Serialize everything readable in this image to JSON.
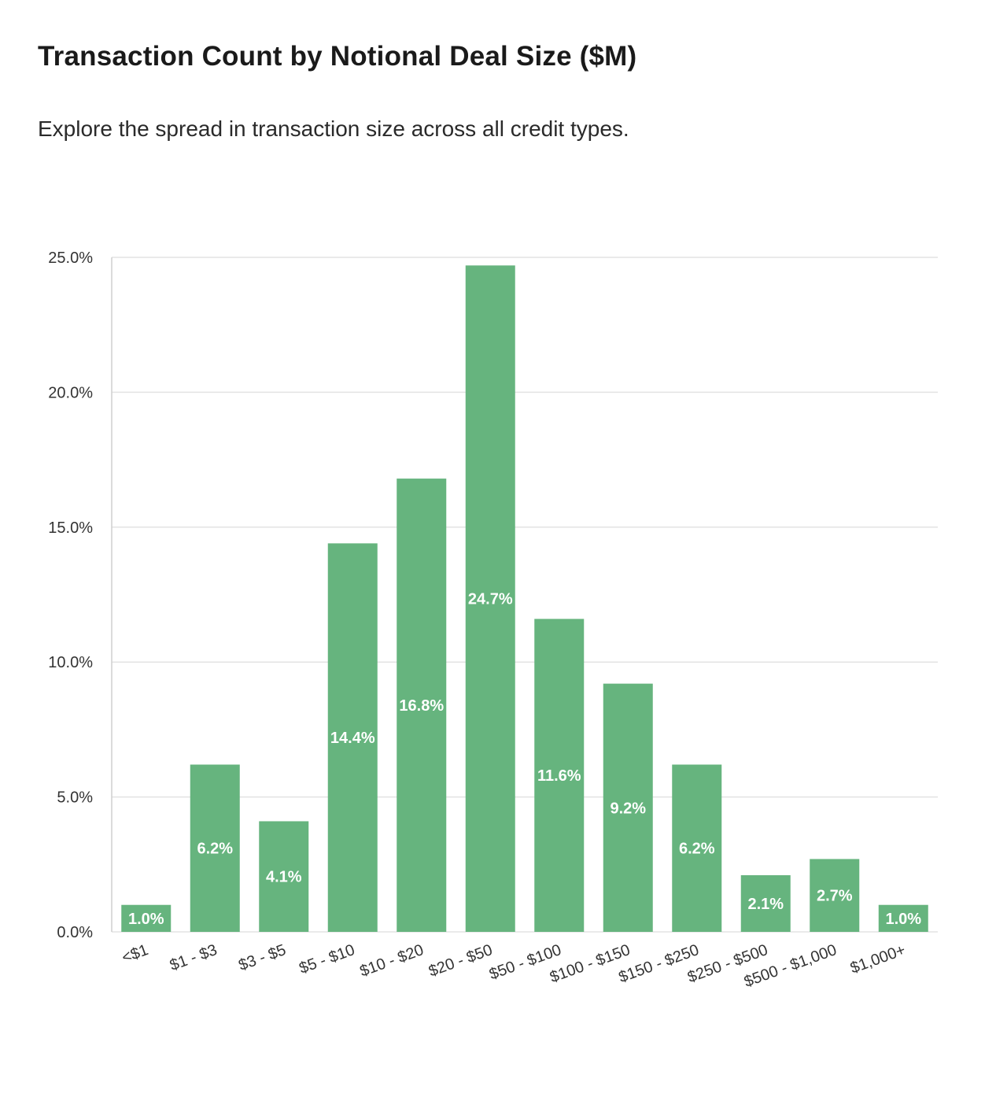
{
  "title": "Transaction Count by Notional Deal Size ($M)",
  "subtitle": "Explore the spread in transaction size across all credit types.",
  "colors": {
    "bar": "#66b47e",
    "grid": "#e3e3e3",
    "axis": "#cfcfcf",
    "label": "#ffffff"
  },
  "chart_data": {
    "type": "bar",
    "title": "Transaction Count by Notional Deal Size ($M)",
    "subtitle": "Explore the spread in transaction size across all credit types.",
    "categories": [
      "<$1",
      "$1 - $3",
      "$3 - $5",
      "$5 - $10",
      "$10 - $20",
      "$20 - $50",
      "$50 - $100",
      "$100 - $150",
      "$150 - $250",
      "$250 - $500",
      "$500 - $1,000",
      "$1,000+"
    ],
    "values": [
      1.0,
      6.2,
      4.1,
      14.4,
      16.8,
      24.7,
      11.6,
      9.2,
      6.2,
      2.1,
      2.7,
      1.0
    ],
    "data_labels": [
      "1.0%",
      "6.2%",
      "4.1%",
      "14.4%",
      "16.8%",
      "24.7%",
      "11.6%",
      "9.2%",
      "6.2%",
      "2.1%",
      "2.7%",
      "1.0%"
    ],
    "yticks": [
      0,
      5,
      10,
      15,
      20,
      25
    ],
    "ytick_labels": [
      "0.0%",
      "5.0%",
      "10.0%",
      "15.0%",
      "20.0%",
      "25.0%"
    ],
    "ylim": [
      0,
      25
    ],
    "xlabel": "",
    "ylabel": "",
    "grid": true,
    "legend": "none"
  }
}
